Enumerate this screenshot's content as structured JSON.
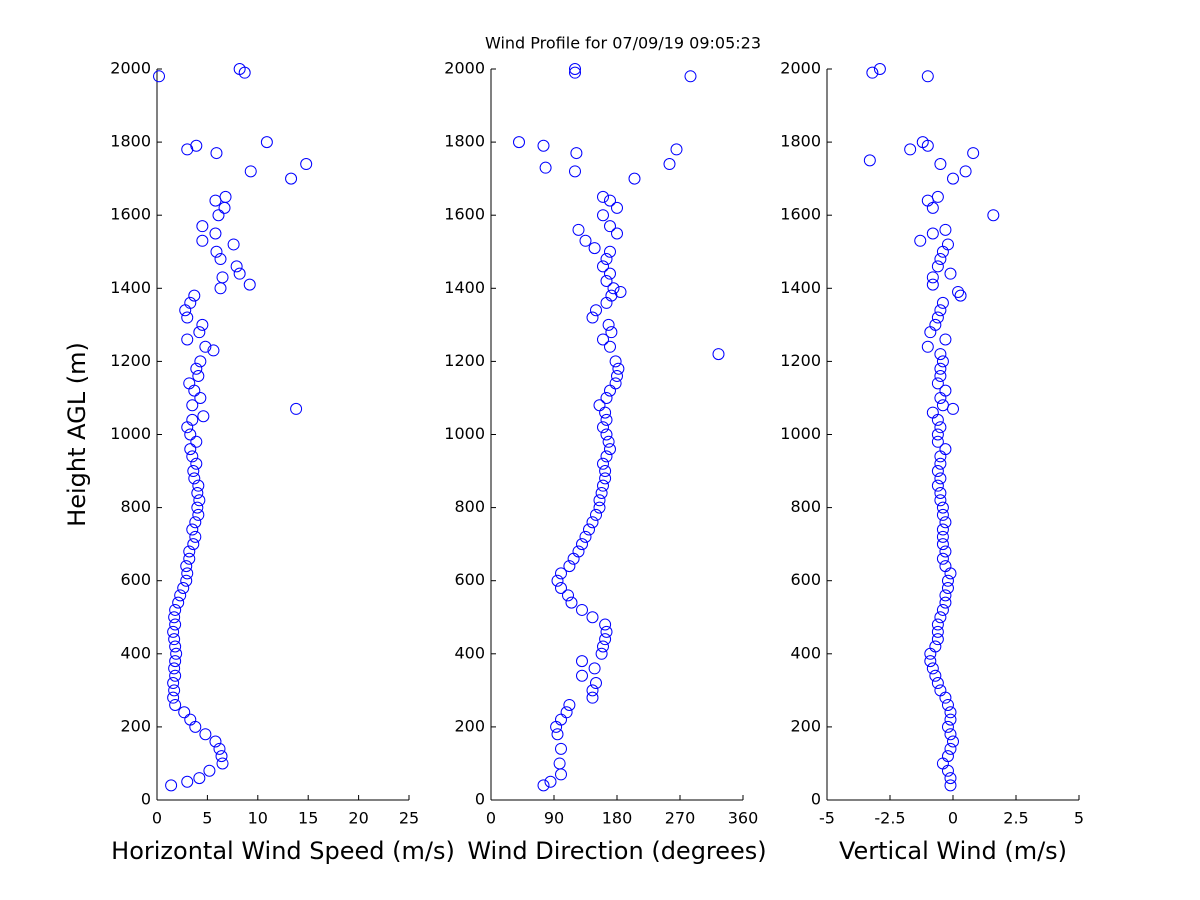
{
  "chart_data": [
    {
      "type": "scatter",
      "xlabel": "Horizontal Wind Speed (m/s)",
      "ylabel": "Height AGL (m)",
      "color": "#0000ff",
      "xlim": [
        0,
        25
      ],
      "xticks": [
        0,
        5,
        10,
        15,
        20,
        25
      ],
      "ylim": [
        0,
        2000
      ],
      "yticks": [
        0,
        200,
        400,
        600,
        800,
        1000,
        1200,
        1400,
        1600,
        1800,
        2000
      ],
      "x": [
        1.4,
        3.0,
        4.2,
        5.2,
        6.5,
        6.4,
        6.2,
        5.8,
        4.8,
        3.8,
        3.3,
        2.7,
        1.8,
        1.6,
        1.7,
        1.6,
        1.8,
        1.7,
        1.8,
        1.9,
        1.8,
        1.7,
        1.6,
        1.8,
        1.7,
        1.8,
        2.1,
        2.3,
        2.6,
        2.9,
        3.0,
        2.9,
        3.2,
        3.2,
        3.6,
        3.8,
        3.5,
        3.8,
        4.1,
        4.0,
        4.2,
        4.0,
        4.1,
        3.7,
        3.6,
        3.9,
        3.5,
        3.3,
        3.9,
        3.3,
        3.0,
        3.5,
        4.6,
        13.8,
        3.5,
        4.3,
        3.7,
        3.2,
        4.1,
        3.9,
        4.3,
        5.6,
        4.8,
        3.0,
        4.2,
        4.5,
        3.0,
        2.8,
        3.3,
        3.7,
        6.3,
        9.2,
        6.5,
        8.2,
        7.9,
        6.3,
        5.9,
        7.6,
        4.5,
        5.8,
        4.5,
        6.1,
        6.7,
        5.8,
        6.8,
        13.3,
        9.3,
        14.8,
        5.9,
        3.0,
        3.9,
        10.9,
        0.2,
        8.7,
        8.2
      ],
      "values": [
        40,
        50,
        60,
        80,
        100,
        120,
        140,
        160,
        180,
        200,
        220,
        240,
        260,
        280,
        300,
        320,
        340,
        360,
        380,
        400,
        420,
        440,
        460,
        480,
        500,
        520,
        540,
        560,
        580,
        600,
        620,
        640,
        660,
        680,
        700,
        720,
        740,
        760,
        780,
        800,
        820,
        840,
        860,
        880,
        900,
        920,
        940,
        960,
        980,
        1000,
        1020,
        1040,
        1050,
        1070,
        1080,
        1100,
        1120,
        1140,
        1160,
        1180,
        1200,
        1230,
        1240,
        1260,
        1280,
        1300,
        1320,
        1340,
        1360,
        1380,
        1400,
        1410,
        1430,
        1440,
        1460,
        1480,
        1500,
        1520,
        1530,
        1550,
        1570,
        1600,
        1620,
        1640,
        1650,
        1700,
        1720,
        1740,
        1770,
        1780,
        1790,
        1800,
        1980,
        1990,
        2000
      ]
    },
    {
      "type": "scatter",
      "title": "Wind Profile for  07/09/19 09:05:23",
      "xlabel": "Wind Direction (degrees)",
      "color": "#0000ff",
      "xlim": [
        0,
        360
      ],
      "xticks": [
        0,
        90,
        180,
        270,
        360
      ],
      "ylim": [
        0,
        2000
      ],
      "yticks": [
        0,
        200,
        400,
        600,
        800,
        1000,
        1200,
        1400,
        1600,
        1800,
        2000
      ],
      "x": [
        75,
        85,
        100,
        98,
        100,
        95,
        93,
        100,
        108,
        112,
        145,
        145,
        150,
        130,
        148,
        130,
        158,
        160,
        163,
        165,
        163,
        145,
        130,
        115,
        110,
        100,
        95,
        100,
        112,
        118,
        125,
        130,
        135,
        140,
        145,
        150,
        155,
        155,
        158,
        160,
        163,
        163,
        160,
        165,
        170,
        168,
        165,
        160,
        165,
        163,
        155,
        165,
        170,
        178,
        180,
        182,
        178,
        325,
        170,
        160,
        172,
        168,
        145,
        150,
        165,
        172,
        185,
        175,
        165,
        170,
        160,
        165,
        170,
        148,
        135,
        180,
        125,
        170,
        160,
        180,
        170,
        160,
        205,
        120,
        78,
        255,
        122,
        265,
        75,
        40,
        285,
        120,
        120
      ],
      "values": [
        40,
        50,
        70,
        100,
        140,
        180,
        200,
        220,
        240,
        260,
        280,
        300,
        320,
        340,
        360,
        380,
        400,
        420,
        440,
        460,
        480,
        500,
        520,
        540,
        560,
        580,
        600,
        620,
        640,
        660,
        680,
        700,
        720,
        740,
        760,
        780,
        800,
        820,
        840,
        860,
        880,
        900,
        920,
        940,
        960,
        980,
        1000,
        1020,
        1040,
        1060,
        1080,
        1100,
        1120,
        1140,
        1160,
        1180,
        1200,
        1220,
        1240,
        1260,
        1280,
        1300,
        1320,
        1340,
        1360,
        1380,
        1390,
        1400,
        1420,
        1440,
        1460,
        1480,
        1500,
        1510,
        1530,
        1550,
        1560,
        1570,
        1600,
        1620,
        1640,
        1650,
        1700,
        1720,
        1730,
        1740,
        1770,
        1780,
        1790,
        1800,
        1980,
        1990,
        2000
      ]
    },
    {
      "type": "scatter",
      "xlabel": "Vertical Wind (m/s)",
      "color": "#0000ff",
      "xlim": [
        -5,
        5
      ],
      "xticks": [
        -5,
        -2.5,
        0,
        2.5,
        5
      ],
      "ylim": [
        0,
        2000
      ],
      "yticks": [
        0,
        200,
        400,
        600,
        800,
        1000,
        1200,
        1400,
        1600,
        1800,
        2000
      ],
      "x": [
        -0.1,
        -0.1,
        -0.2,
        -0.4,
        -0.2,
        -0.1,
        0.0,
        -0.1,
        -0.2,
        -0.1,
        -0.1,
        -0.2,
        -0.3,
        -0.5,
        -0.6,
        -0.7,
        -0.8,
        -0.9,
        -0.9,
        -0.7,
        -0.6,
        -0.6,
        -0.6,
        -0.5,
        -0.4,
        -0.3,
        -0.3,
        -0.2,
        -0.2,
        -0.1,
        -0.3,
        -0.4,
        -0.3,
        -0.4,
        -0.4,
        -0.4,
        -0.3,
        -0.4,
        -0.4,
        -0.5,
        -0.5,
        -0.6,
        -0.5,
        -0.6,
        -0.5,
        -0.5,
        -0.3,
        -0.6,
        -0.6,
        -0.5,
        -0.6,
        -0.8,
        0.0,
        -0.4,
        -0.5,
        -0.3,
        -0.6,
        -0.5,
        -0.5,
        -0.4,
        -0.5,
        -1.0,
        -0.3,
        -0.9,
        -0.7,
        -0.6,
        -0.5,
        -0.4,
        0.3,
        0.2,
        -0.8,
        -0.8,
        -0.1,
        -0.6,
        -0.5,
        -0.4,
        -0.2,
        -1.3,
        -0.8,
        -0.3,
        1.6,
        -0.8,
        -1.0,
        -0.6,
        0.0,
        0.5,
        -0.5,
        -3.3,
        0.8,
        -1.7,
        -1.0,
        -1.2,
        -1.0,
        -3.2,
        -2.9
      ],
      "values": [
        40,
        60,
        80,
        100,
        120,
        140,
        160,
        180,
        200,
        220,
        240,
        260,
        280,
        300,
        320,
        340,
        360,
        380,
        400,
        420,
        440,
        460,
        480,
        500,
        520,
        540,
        560,
        580,
        600,
        620,
        640,
        660,
        680,
        700,
        720,
        740,
        760,
        780,
        800,
        820,
        840,
        860,
        880,
        900,
        920,
        940,
        960,
        980,
        1000,
        1020,
        1040,
        1060,
        1070,
        1080,
        1100,
        1120,
        1140,
        1160,
        1180,
        1200,
        1220,
        1240,
        1260,
        1280,
        1300,
        1320,
        1340,
        1360,
        1380,
        1390,
        1410,
        1430,
        1440,
        1460,
        1480,
        1500,
        1520,
        1530,
        1550,
        1560,
        1600,
        1620,
        1640,
        1650,
        1700,
        1720,
        1740,
        1750,
        1770,
        1780,
        1790,
        1800,
        1980,
        1990,
        2000
      ]
    }
  ]
}
